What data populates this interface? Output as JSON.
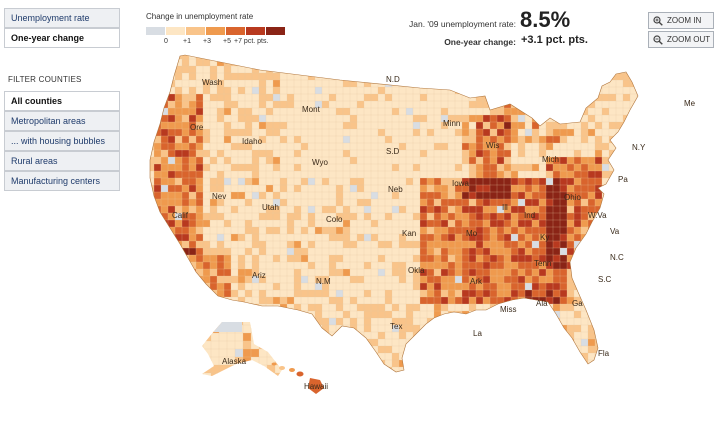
{
  "left_menu": {
    "view_buttons": [
      {
        "label": "Unemployment rate",
        "active": false
      },
      {
        "label": "One-year change",
        "active": true
      }
    ],
    "filter_title": "FILTER COUNTIES",
    "filters": [
      {
        "label": "All counties",
        "active": true
      },
      {
        "label": "Metropolitan areas",
        "active": false
      },
      {
        "label": "... with housing bubbles",
        "active": false
      },
      {
        "label": "Rural areas",
        "active": false
      },
      {
        "label": "Manufacturing centers",
        "active": false
      }
    ]
  },
  "legend": {
    "title": "Change in unemployment rate",
    "swatches": [
      "#d8dde3",
      "#fde6c4",
      "#f9c48a",
      "#ef9a4e",
      "#d9642d",
      "#b8391f",
      "#8a2416"
    ],
    "ticks": [
      "0",
      "+1",
      "+3",
      "+5",
      "+7 pct. pts."
    ]
  },
  "stats": {
    "rate_label": "Jan. '09 unemployment rate:",
    "rate_value": "8.5%",
    "change_label": "One-year change:",
    "change_value": "+3.1 pct. pts."
  },
  "zoom": {
    "in_label": "ZOOM IN",
    "out_label": "ZOOM OUT"
  },
  "map_labels": [
    {
      "text": "Wash",
      "name": "label-wash"
    },
    {
      "text": "Ore",
      "name": "label-ore"
    },
    {
      "text": "Idaho",
      "name": "label-idaho"
    },
    {
      "text": "Mont",
      "name": "label-mont"
    },
    {
      "text": "Wyo",
      "name": "label-wyo"
    },
    {
      "text": "Nev",
      "name": "label-nev"
    },
    {
      "text": "Utah",
      "name": "label-utah"
    },
    {
      "text": "Calif",
      "name": "label-calif"
    },
    {
      "text": "Colo",
      "name": "label-colo"
    },
    {
      "text": "Ariz",
      "name": "label-ariz"
    },
    {
      "text": "N.M",
      "name": "label-nm"
    },
    {
      "text": "N.D",
      "name": "label-nd"
    },
    {
      "text": "S.D",
      "name": "label-sd"
    },
    {
      "text": "Neb",
      "name": "label-neb"
    },
    {
      "text": "Kan",
      "name": "label-kan"
    },
    {
      "text": "Okla",
      "name": "label-okla"
    },
    {
      "text": "Tex",
      "name": "label-tex"
    },
    {
      "text": "Minn",
      "name": "label-minn"
    },
    {
      "text": "Iowa",
      "name": "label-iowa"
    },
    {
      "text": "Mo",
      "name": "label-mo"
    },
    {
      "text": "Ark",
      "name": "label-ark"
    },
    {
      "text": "La",
      "name": "label-la"
    },
    {
      "text": "Wis",
      "name": "label-wis"
    },
    {
      "text": "Ill",
      "name": "label-ill"
    },
    {
      "text": "Mich",
      "name": "label-mich"
    },
    {
      "text": "Ind",
      "name": "label-ind"
    },
    {
      "text": "Ohio",
      "name": "label-ohio"
    },
    {
      "text": "Ky",
      "name": "label-ky"
    },
    {
      "text": "Tenn",
      "name": "label-tenn"
    },
    {
      "text": "Miss",
      "name": "label-miss"
    },
    {
      "text": "Ala",
      "name": "label-ala"
    },
    {
      "text": "Ga",
      "name": "label-ga"
    },
    {
      "text": "Fla",
      "name": "label-fla"
    },
    {
      "text": "S.C",
      "name": "label-sc"
    },
    {
      "text": "N.C",
      "name": "label-nc"
    },
    {
      "text": "Va",
      "name": "label-va"
    },
    {
      "text": "W.Va",
      "name": "label-wva"
    },
    {
      "text": "Pa",
      "name": "label-pa"
    },
    {
      "text": "N.Y",
      "name": "label-ny"
    },
    {
      "text": "Me",
      "name": "label-me"
    },
    {
      "text": "Alaska",
      "name": "label-alaska"
    },
    {
      "text": "Hawaii",
      "name": "label-hawaii"
    }
  ]
}
